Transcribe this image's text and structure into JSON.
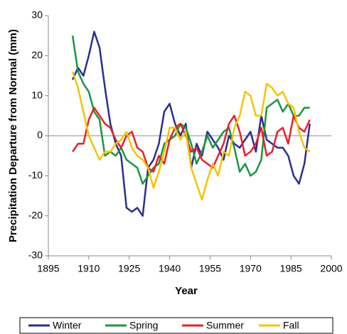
{
  "chart_data": {
    "type": "line",
    "x_label": "Year",
    "y_label": "Precipitation Departure from Normal (mm)",
    "x": [
      1904,
      1906,
      1908,
      1910,
      1912,
      1914,
      1916,
      1918,
      1920,
      1922,
      1924,
      1926,
      1928,
      1930,
      1932,
      1934,
      1936,
      1938,
      1940,
      1942,
      1944,
      1946,
      1948,
      1950,
      1952,
      1954,
      1956,
      1958,
      1960,
      1962,
      1964,
      1966,
      1968,
      1970,
      1972,
      1974,
      1976,
      1978,
      1980,
      1982,
      1984,
      1986,
      1988,
      1990,
      1992
    ],
    "series": [
      {
        "name": "Winter",
        "color": "#2b2f8f",
        "values": [
          14,
          17,
          15,
          20,
          26,
          22,
          12,
          3,
          -2,
          -5,
          -18,
          -19,
          -18,
          -20,
          -8,
          -6,
          -2,
          6,
          8,
          3,
          0,
          3,
          -8,
          -2,
          -5,
          1,
          -1,
          -3,
          -6,
          0,
          -2,
          -3,
          -1,
          1,
          -4,
          5,
          -1,
          -2,
          -3,
          -3,
          -5,
          -10,
          -12,
          -7,
          3
        ]
      },
      {
        "name": "Spring",
        "color": "#1a9640",
        "values": [
          25,
          16,
          13,
          11,
          6,
          4,
          -5,
          -4,
          -5,
          -3,
          -6,
          -7,
          -8,
          -12,
          -10,
          -8,
          -7,
          -2,
          -1,
          0,
          3,
          2,
          -2,
          -7,
          -4,
          0,
          -3,
          -1,
          1,
          2,
          -3,
          -9,
          -7,
          -10,
          -9,
          -6,
          7,
          8,
          9,
          6,
          8,
          5,
          5,
          7,
          7
        ]
      },
      {
        "name": "Summer",
        "color": "#e8202a",
        "values": [
          -4,
          -2,
          -2,
          4,
          7,
          5,
          3,
          2,
          -1,
          -3,
          0,
          1,
          -3,
          -4,
          -8,
          -9,
          -5,
          -7,
          -1,
          2,
          3,
          0,
          -4,
          -3,
          -6,
          -7,
          -8,
          -5,
          -2,
          3,
          5,
          1,
          -5,
          -4,
          -2,
          2,
          -5,
          -4,
          1,
          2,
          -2,
          5,
          2,
          1,
          4
        ]
      },
      {
        "name": "Fall",
        "color": "#f5c400",
        "values": [
          16,
          12,
          6,
          0,
          -3,
          -6,
          -4,
          -4,
          -2,
          -1,
          1,
          -3,
          -5,
          -6,
          -8,
          -13,
          -9,
          -4,
          2,
          2,
          -1,
          1,
          -8,
          -12,
          -16,
          -11,
          -7,
          -10,
          -4,
          -5,
          2,
          5,
          11,
          10,
          5,
          5,
          13,
          12,
          10,
          11,
          8,
          7,
          1,
          -3,
          -4
        ]
      }
    ],
    "xlim": [
      1895,
      2000
    ],
    "xticks": [
      1895,
      1910,
      1925,
      1940,
      1955,
      1970,
      1985,
      2000
    ],
    "ylim": [
      -30,
      30
    ],
    "yticks": [
      -30,
      -20,
      -10,
      0,
      10,
      20,
      30
    ],
    "legend": "bottom"
  }
}
